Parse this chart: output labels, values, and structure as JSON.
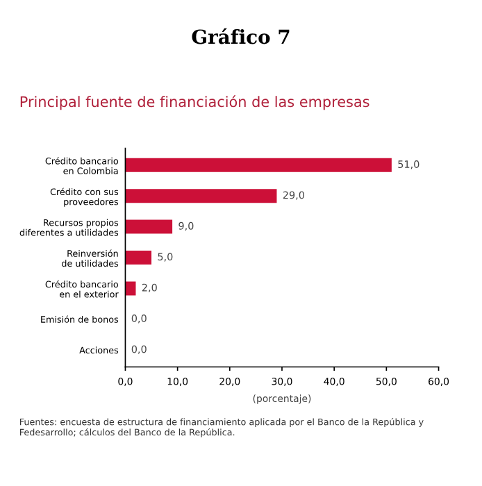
{
  "chart_data": {
    "type": "bar",
    "orientation": "horizontal",
    "title": "Gráfico 7",
    "subtitle": "Principal fuente de financiación de las empresas",
    "xlabel": "(porcentaje)",
    "categories": [
      "Crédito bancario\nen Colombia",
      "Crédito con sus\nproveedores",
      "Recursos propios\ndiferentes a utilidades",
      "Reinversión\nde utilidades",
      "Crédito bancario\nen el exterior",
      "Emisión de bonos",
      "Acciones"
    ],
    "values": [
      51.0,
      29.0,
      9.0,
      5.0,
      2.0,
      0.0,
      0.0
    ],
    "value_labels": [
      "51,0",
      "29,0",
      "9,0",
      "5,0",
      "2,0",
      "0,0",
      "0,0"
    ],
    "color": "#cc1038",
    "xlim": [
      0,
      60
    ],
    "xticks": [
      {
        "value": 0,
        "label": "0,0"
      },
      {
        "value": 10,
        "label": "10,0"
      },
      {
        "value": 20,
        "label": "20,0"
      },
      {
        "value": 30,
        "label": "30,0"
      },
      {
        "value": 40,
        "label": "40,0"
      },
      {
        "value": 50,
        "label": "50,0"
      },
      {
        "value": 60,
        "label": "60,0"
      }
    ],
    "grid": false,
    "legend": false,
    "annotations": [
      "Fuentes: encuesta de estructura de financiamiento aplicada por el Banco de la República y Fedesarrollo; cálculos del Banco de la República."
    ]
  }
}
